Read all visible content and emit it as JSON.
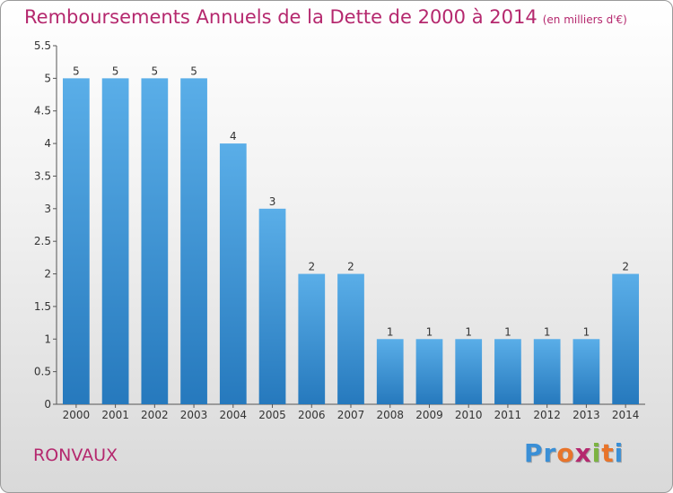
{
  "header": {
    "title": "Remboursements Annuels de la Dette de 2000 à 2014",
    "subtitle": "(en milliers d'€)"
  },
  "footer": {
    "commune": "RONVAUX",
    "logo_letters": [
      "P",
      "r",
      "o",
      "x",
      "i",
      "t",
      "i"
    ],
    "logo_colors": [
      "#3a8fd6",
      "#3a8fd6",
      "#e8742a",
      "#b5286e",
      "#7cb342",
      "#e8742a",
      "#3a8fd6"
    ]
  },
  "colors": {
    "bar_light": "#5aaee8",
    "bar_dark": "#2679bd",
    "text_accent": "#b5286e"
  },
  "chart_data": {
    "type": "bar",
    "categories": [
      "2000",
      "2001",
      "2002",
      "2003",
      "2004",
      "2005",
      "2006",
      "2007",
      "2008",
      "2009",
      "2010",
      "2011",
      "2012",
      "2013",
      "2014"
    ],
    "values": [
      5,
      5,
      5,
      5,
      4,
      3,
      2,
      2,
      1,
      1,
      1,
      1,
      1,
      1,
      2
    ],
    "data_labels": [
      "5",
      "5",
      "5",
      "5",
      "4",
      "3",
      "2",
      "2",
      "1",
      "1",
      "1",
      "1",
      "1",
      "1",
      "2"
    ],
    "title": "Remboursements Annuels de la Dette de 2000 à 2014",
    "subtitle": "(en milliers d'€)",
    "xlabel": "",
    "ylabel": "",
    "ylim": [
      0,
      5.5
    ],
    "yticks": [
      "0",
      "0.5",
      "1",
      "1.5",
      "2",
      "2.5",
      "3",
      "3.5",
      "4",
      "4.5",
      "5",
      "5.5"
    ],
    "grid": false,
    "legend": "none"
  }
}
